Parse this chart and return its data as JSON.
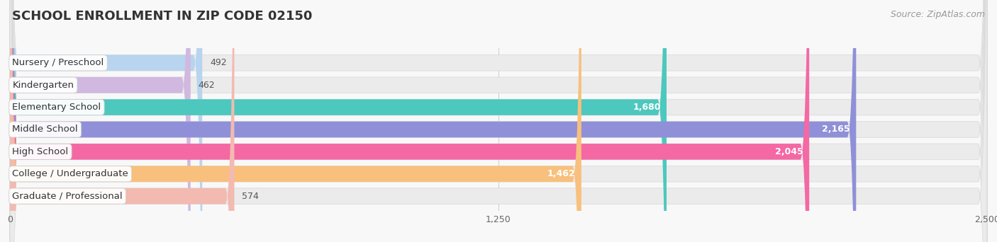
{
  "title": "SCHOOL ENROLLMENT IN ZIP CODE 02150",
  "source": "Source: ZipAtlas.com",
  "categories": [
    "Nursery / Preschool",
    "Kindergarten",
    "Elementary School",
    "Middle School",
    "High School",
    "College / Undergraduate",
    "Graduate / Professional"
  ],
  "values": [
    492,
    462,
    1680,
    2165,
    2045,
    1462,
    574
  ],
  "bar_colors": [
    "#b8d4ee",
    "#d0b8e0",
    "#4dc8be",
    "#9090d8",
    "#f468a4",
    "#f8c07c",
    "#f2bab0"
  ],
  "label_bg_colors": [
    "#ddeeff",
    "#e8d8f4",
    "#c8f0ec",
    "#d8d8f8",
    "#fcd0e0",
    "#fde8c8",
    "#fde0d8"
  ],
  "xlim": [
    0,
    2500
  ],
  "xticks": [
    0,
    1250,
    2500
  ],
  "title_fontsize": 13,
  "source_fontsize": 9,
  "label_fontsize": 9.5,
  "value_fontsize": 9,
  "background_color": "#f8f8f8",
  "bar_bg_color": "#ebebeb",
  "bar_height": 0.72,
  "bar_spacing": 1.0
}
